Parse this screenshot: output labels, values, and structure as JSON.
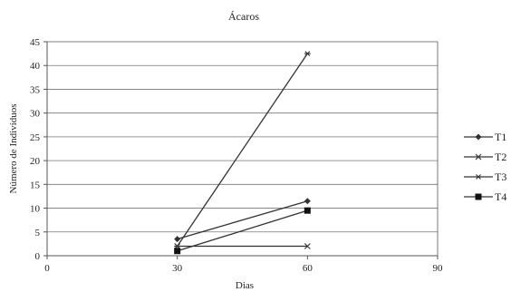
{
  "chart_data": {
    "type": "line",
    "title": "Ácaros",
    "xlabel": "Dias",
    "ylabel": "Número de Indivíduos",
    "xlim": [
      0,
      90
    ],
    "ylim": [
      0,
      45
    ],
    "xticks": [
      0,
      30,
      60,
      90
    ],
    "yticks": [
      0,
      5,
      10,
      15,
      20,
      25,
      30,
      35,
      40,
      45
    ],
    "grid": "horizontal",
    "legend_position": "right",
    "series": [
      {
        "name": "T1",
        "marker": "diamond",
        "x": [
          30,
          60
        ],
        "y": [
          3.5,
          11.5
        ]
      },
      {
        "name": "T2",
        "marker": "x",
        "x": [
          30,
          60
        ],
        "y": [
          2,
          2
        ]
      },
      {
        "name": "T3",
        "marker": "star",
        "x": [
          30,
          60
        ],
        "y": [
          2,
          42.5
        ]
      },
      {
        "name": "T4",
        "marker": "square",
        "x": [
          30,
          60
        ],
        "y": [
          1,
          9.5
        ]
      }
    ],
    "colors": {
      "line": "#333333",
      "grid": "#777777",
      "axis": "#555555"
    }
  }
}
